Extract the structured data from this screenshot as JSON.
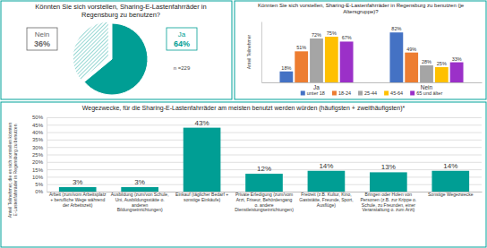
{
  "chart_data": [
    {
      "type": "pie",
      "title": "Könnten Sie sich vorstellen, Sharing-E-Lastenfahrräder in Regensburg zu benutzen?",
      "categories": [
        "Ja",
        "Nein"
      ],
      "values": [
        64,
        36
      ],
      "value_labels": [
        "64%",
        "36%"
      ],
      "colors": [
        "#009e94",
        "#7fcfc9"
      ],
      "data_labels": true,
      "annotations": [
        "n =229"
      ]
    },
    {
      "type": "bar",
      "title": "Könnten Sie sich vorstellen, Sharing-E-Lastenfahrräder in Regensburg zu benutzen (je Altersgruppe)?",
      "y_label": "Anteil Teilnehmer",
      "categories": [
        "Ja",
        "Nein"
      ],
      "series": [
        {
          "name": "unter 18",
          "color": "#4472c4",
          "values": [
            18,
            82
          ],
          "value_labels": [
            "18%",
            "82%"
          ]
        },
        {
          "name": "18-24",
          "color": "#ed7d31",
          "values": [
            51,
            49
          ],
          "value_labels": [
            "51%",
            "49%"
          ]
        },
        {
          "name": "25-44",
          "color": "#a5a5a5",
          "values": [
            72,
            28
          ],
          "value_labels": [
            "72%",
            "28%"
          ]
        },
        {
          "name": "45-64",
          "color": "#ffc000",
          "values": [
            75,
            25
          ],
          "value_labels": [
            "75%",
            "25%"
          ]
        },
        {
          "name": "65 und älter",
          "color": "#9b30c8",
          "values": [
            67,
            33
          ],
          "value_labels": [
            "67%",
            "33%"
          ]
        }
      ],
      "ylim": [
        0,
        100
      ],
      "tick_labels": "x",
      "data_labels": true,
      "legend": "bottom"
    },
    {
      "type": "bar",
      "title": "Wegezwecke, für die Sharing-E-Lastenfahrräder am meisten benutzt werden würden (häufigsten + zweithäufigsten)*",
      "y_label": "Anteil Teilnehmer, die es sich vorstellen könnten E-Lastenfahrräder in Regensburg zu benutzen",
      "categories": [
        "Arbeit (zum/vom Arbeitsplatz + berufliche Wege während der Arbeitszeit)",
        "Ausbildung (zum/von Schule, Uni, Ausbildungsstätte o. anderen Bildungseinrichtungen)",
        "Einkauf (täglicher Bedarf + sonstige Einkäufe)",
        "Private Erledigung (zum/vom Arzt, Friseur, Behördengang o. andere Dienstleistungseinrichtungen)",
        "Freizeit (z.B. Kultur, Kino, Gaststätte, Freunde, Sport, Ausflüge)",
        "Bringen oder Holen von Personen (z.B. zur Krippe o. Schule, zu Freunden, einer Veranstaltung o. zum Arzt)",
        "Sonstige Wegezwecke"
      ],
      "values": [
        3,
        3,
        43,
        12,
        14,
        13,
        14
      ],
      "value_labels": [
        "3%",
        "3%",
        "43%",
        "12%",
        "14%",
        "13%",
        "14%"
      ],
      "color": "#009e94",
      "ylim": [
        0,
        50
      ],
      "yticks": [
        {
          "value": 0,
          "label": "0%"
        },
        {
          "value": 5,
          "label": "5%"
        },
        {
          "value": 10,
          "label": "10%"
        },
        {
          "value": 15,
          "label": "15%"
        },
        {
          "value": 20,
          "label": "20%"
        },
        {
          "value": 25,
          "label": "25%"
        },
        {
          "value": 30,
          "label": "30%"
        },
        {
          "value": 35,
          "label": "35%"
        },
        {
          "value": 40,
          "label": "40%"
        },
        {
          "value": 45,
          "label": "45%"
        },
        {
          "value": 50,
          "label": "50%"
        }
      ],
      "grid": true,
      "data_labels": true
    }
  ]
}
